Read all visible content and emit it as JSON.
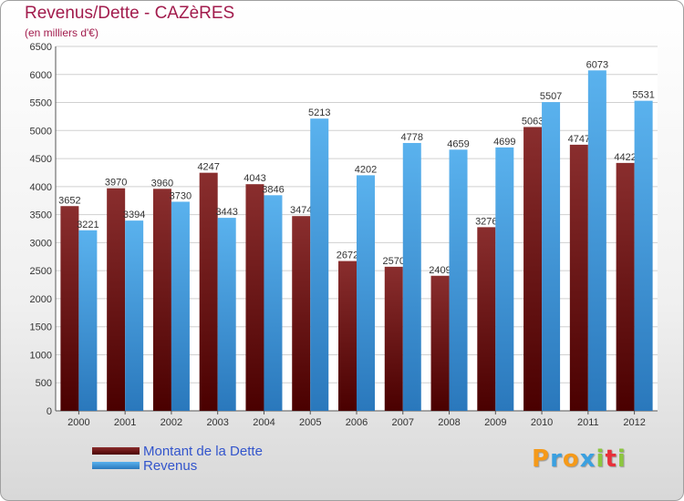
{
  "header": {
    "title": "Revenus/Dette - CAZèRES",
    "subtitle": "(en milliers d'€)"
  },
  "chart_data": {
    "type": "bar",
    "categories": [
      "2000",
      "2001",
      "2002",
      "2003",
      "2004",
      "2005",
      "2006",
      "2007",
      "2008",
      "2009",
      "2010",
      "2011",
      "2012"
    ],
    "series": [
      {
        "name": "Montant de la Dette",
        "color": "#7a1a1a",
        "values": [
          3652,
          3970,
          3960,
          4247,
          4043,
          3474,
          2672,
          2570,
          2409,
          3276,
          5063,
          4747,
          4422
        ]
      },
      {
        "name": "Revenus",
        "color": "#3a9ee0",
        "values": [
          3221,
          3394,
          3730,
          3443,
          3846,
          5213,
          4202,
          4778,
          4659,
          4699,
          5507,
          6073,
          5531
        ]
      }
    ],
    "ylim": [
      0,
      6500
    ],
    "yticks": [
      0,
      500,
      1000,
      1500,
      2000,
      2500,
      3000,
      3500,
      4000,
      4500,
      5000,
      5500,
      6000,
      6500
    ],
    "grid": true,
    "legend": "bottom-left"
  },
  "logo": {
    "letters": [
      "P",
      "r",
      "o",
      "x",
      "i",
      "t",
      "i"
    ],
    "colors": [
      "#f59a1a",
      "#3aa0e0",
      "#f59a1a",
      "#3aa0e0",
      "#8cc63f",
      "#e8303a",
      "#8cc63f"
    ]
  }
}
